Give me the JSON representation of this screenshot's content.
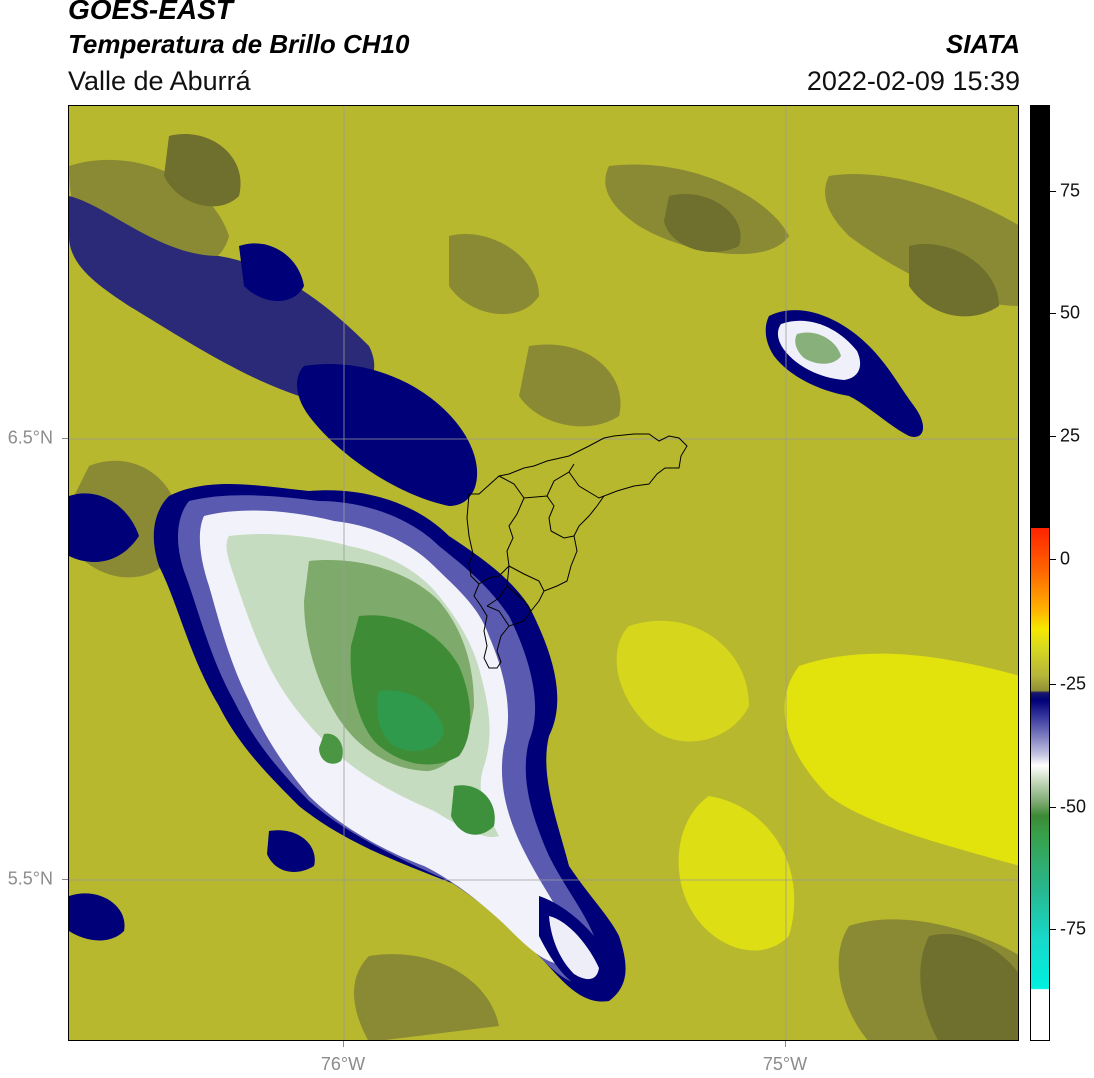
{
  "header": {
    "title_line1": "GOES-EAST",
    "title_line2": "Temperatura de Brillo CH10",
    "region": "Valle de Aburrá",
    "brand": "SIATA",
    "timestamp": "2022-02-09 15:39"
  },
  "axes": {
    "lat_labels": [
      {
        "label": "6.5°N",
        "value": 6.5
      },
      {
        "label": "5.5°N",
        "value": 5.5
      }
    ],
    "lon_labels": [
      {
        "label": "76°W",
        "value": -76.0
      },
      {
        "label": "75°W",
        "value": -75.0
      }
    ]
  },
  "colorbar": {
    "min": -95,
    "max": 92,
    "labels": [
      {
        "label": "75",
        "value": 75
      },
      {
        "label": "50",
        "value": 50
      },
      {
        "label": "25",
        "value": 25
      },
      {
        "label": "0",
        "value": 0
      },
      {
        "label": "-25",
        "value": -25
      },
      {
        "label": "-50",
        "value": -50
      },
      {
        "label": "-75",
        "value": -75
      }
    ]
  },
  "colors": {
    "background_yellow": "#b8b82e",
    "bright_yellow": "#e2e20c",
    "dark_olive": "#7f7f33",
    "navy": "#000078",
    "white": "#ffffff",
    "green": "#3d8b37",
    "teal_green": "#2c9b4c"
  }
}
